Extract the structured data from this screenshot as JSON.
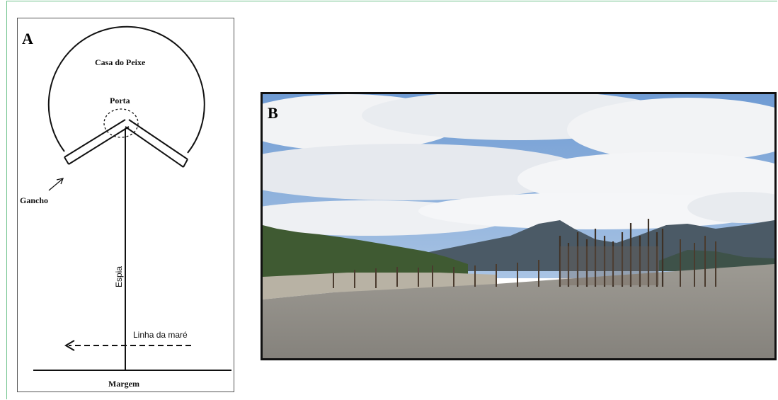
{
  "panel_a": {
    "letter": "A",
    "labels": {
      "casa_do_peixe": "Casa do Peixe",
      "porta": "Porta",
      "gancho": "Gancho",
      "espia": "Espia",
      "linha_da_mare": "Linha da maré",
      "margem": "Margem"
    }
  },
  "panel_b": {
    "letter": "B"
  },
  "colors": {
    "frame": "#6cc18a",
    "sky": "#7fa8d9",
    "water": "#9a9690",
    "mountains": "#4a5a6a"
  }
}
